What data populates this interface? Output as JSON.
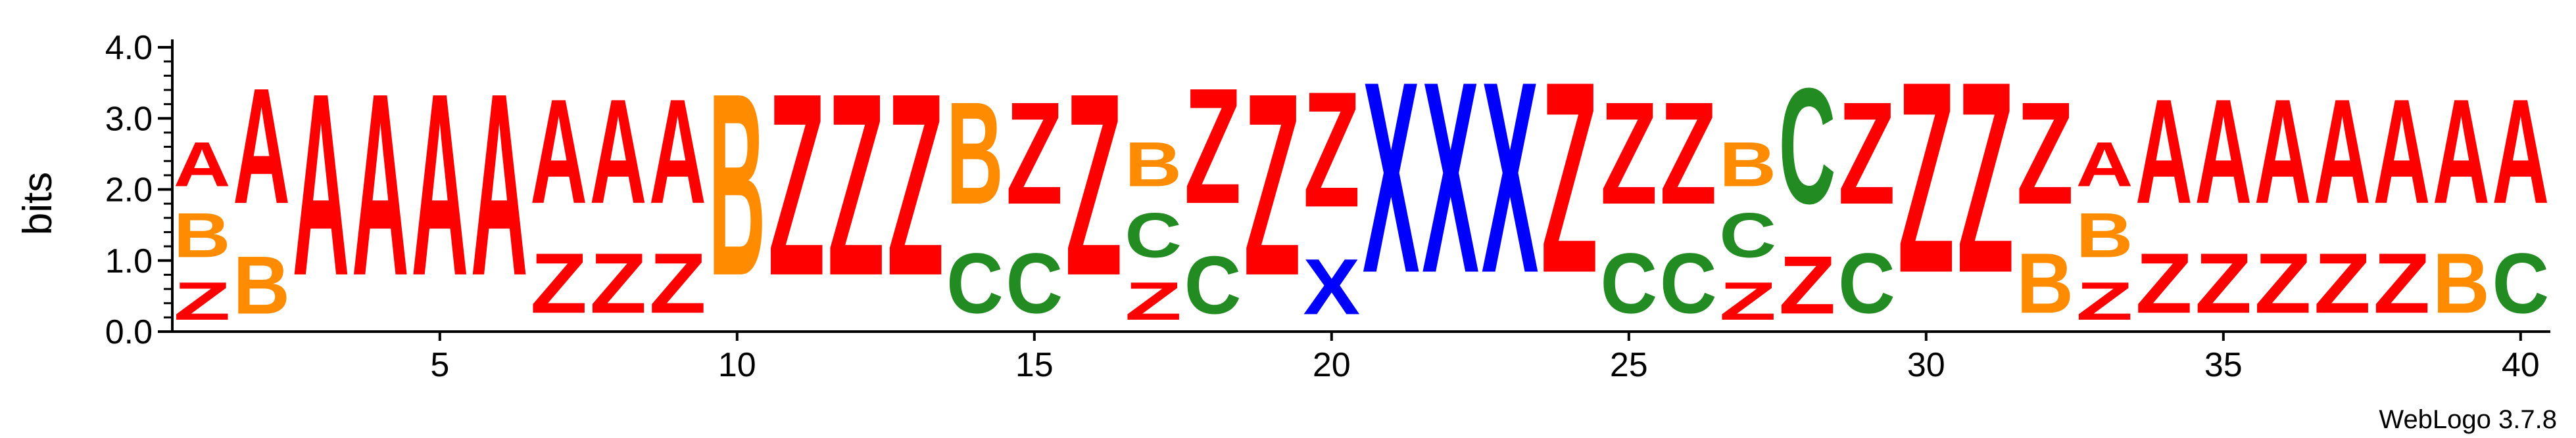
{
  "chart_data": {
    "type": "sequence-logo",
    "ylabel": "bits",
    "ylim": [
      0,
      4.0
    ],
    "y_ticks": [
      "0.0",
      "1.0",
      "2.0",
      "3.0",
      "4.0"
    ],
    "x_ticks": [
      5,
      10,
      15,
      20,
      25,
      30,
      35,
      40
    ],
    "positions_count": 40,
    "credit": "WebLogo 3.7.8",
    "colors": {
      "A": "#ff0000",
      "Z": "#ff0000",
      "B": "#ff8c00",
      "C": "#228b22",
      "X": "#0000ff"
    },
    "columns": [
      {
        "pos": 1,
        "stack": [
          [
            "Z",
            0.85
          ],
          [
            "B",
            1.0
          ],
          [
            "A",
            1.0
          ]
        ]
      },
      {
        "pos": 2,
        "stack": [
          [
            "B",
            1.3
          ],
          [
            "A",
            2.6
          ]
        ]
      },
      {
        "pos": 3,
        "stack": [
          [
            "A",
            4.1
          ]
        ]
      },
      {
        "pos": 4,
        "stack": [
          [
            "A",
            4.1
          ]
        ]
      },
      {
        "pos": 5,
        "stack": [
          [
            "A",
            4.1
          ]
        ]
      },
      {
        "pos": 6,
        "stack": [
          [
            "A",
            4.1
          ]
        ]
      },
      {
        "pos": 7,
        "stack": [
          [
            "Z",
            1.35
          ],
          [
            "A",
            2.35
          ]
        ]
      },
      {
        "pos": 8,
        "stack": [
          [
            "Z",
            1.35
          ],
          [
            "A",
            2.35
          ]
        ]
      },
      {
        "pos": 9,
        "stack": [
          [
            "Z",
            1.35
          ],
          [
            "A",
            2.35
          ]
        ]
      },
      {
        "pos": 10,
        "stack": [
          [
            "B",
            4.1
          ]
        ]
      },
      {
        "pos": 11,
        "stack": [
          [
            "Z",
            4.1
          ]
        ]
      },
      {
        "pos": 12,
        "stack": [
          [
            "Z",
            4.1
          ]
        ]
      },
      {
        "pos": 13,
        "stack": [
          [
            "Z",
            4.1
          ]
        ]
      },
      {
        "pos": 14,
        "stack": [
          [
            "C",
            1.35
          ],
          [
            "B",
            2.3
          ]
        ]
      },
      {
        "pos": 15,
        "stack": [
          [
            "C",
            1.35
          ],
          [
            "Z",
            2.3
          ]
        ]
      },
      {
        "pos": 16,
        "stack": [
          [
            "Z",
            4.1
          ]
        ]
      },
      {
        "pos": 17,
        "stack": [
          [
            "Z",
            0.85
          ],
          [
            "C",
            1.0
          ],
          [
            "B",
            1.0
          ]
        ]
      },
      {
        "pos": 18,
        "stack": [
          [
            "C",
            1.3
          ],
          [
            "Z",
            2.6
          ]
        ]
      },
      {
        "pos": 19,
        "stack": [
          [
            "Z",
            4.1
          ]
        ]
      },
      {
        "pos": 20,
        "stack": [
          [
            "X",
            1.25
          ],
          [
            "Z",
            2.6
          ]
        ]
      },
      {
        "pos": 21,
        "stack": [
          [
            "X",
            4.3
          ]
        ]
      },
      {
        "pos": 22,
        "stack": [
          [
            "X",
            4.3
          ]
        ]
      },
      {
        "pos": 23,
        "stack": [
          [
            "X",
            4.3
          ]
        ]
      },
      {
        "pos": 24,
        "stack": [
          [
            "Z",
            4.3
          ]
        ]
      },
      {
        "pos": 25,
        "stack": [
          [
            "C",
            1.35
          ],
          [
            "Z",
            2.3
          ]
        ]
      },
      {
        "pos": 26,
        "stack": [
          [
            "C",
            1.35
          ],
          [
            "Z",
            2.3
          ]
        ]
      },
      {
        "pos": 27,
        "stack": [
          [
            "Z",
            0.85
          ],
          [
            "C",
            1.0
          ],
          [
            "B",
            1.0
          ]
        ]
      },
      {
        "pos": 28,
        "stack": [
          [
            "Z",
            1.3
          ],
          [
            "C",
            2.6
          ]
        ]
      },
      {
        "pos": 29,
        "stack": [
          [
            "C",
            1.35
          ],
          [
            "Z",
            2.3
          ]
        ]
      },
      {
        "pos": 30,
        "stack": [
          [
            "Z",
            4.3
          ]
        ]
      },
      {
        "pos": 31,
        "stack": [
          [
            "Z",
            4.3
          ]
        ]
      },
      {
        "pos": 32,
        "stack": [
          [
            "B",
            1.35
          ],
          [
            "Z",
            2.3
          ]
        ]
      },
      {
        "pos": 33,
        "stack": [
          [
            "Z",
            0.85
          ],
          [
            "B",
            1.0
          ],
          [
            "A",
            1.0
          ]
        ]
      },
      {
        "pos": 34,
        "stack": [
          [
            "Z",
            1.35
          ],
          [
            "A",
            2.35
          ]
        ]
      },
      {
        "pos": 35,
        "stack": [
          [
            "Z",
            1.35
          ],
          [
            "A",
            2.35
          ]
        ]
      },
      {
        "pos": 36,
        "stack": [
          [
            "Z",
            1.35
          ],
          [
            "A",
            2.35
          ]
        ]
      },
      {
        "pos": 37,
        "stack": [
          [
            "Z",
            1.35
          ],
          [
            "A",
            2.35
          ]
        ]
      },
      {
        "pos": 38,
        "stack": [
          [
            "Z",
            1.35
          ],
          [
            "A",
            2.35
          ]
        ]
      },
      {
        "pos": 39,
        "stack": [
          [
            "B",
            1.35
          ],
          [
            "A",
            2.35
          ]
        ]
      },
      {
        "pos": 40,
        "stack": [
          [
            "C",
            1.35
          ],
          [
            "A",
            2.35
          ]
        ]
      }
    ]
  }
}
